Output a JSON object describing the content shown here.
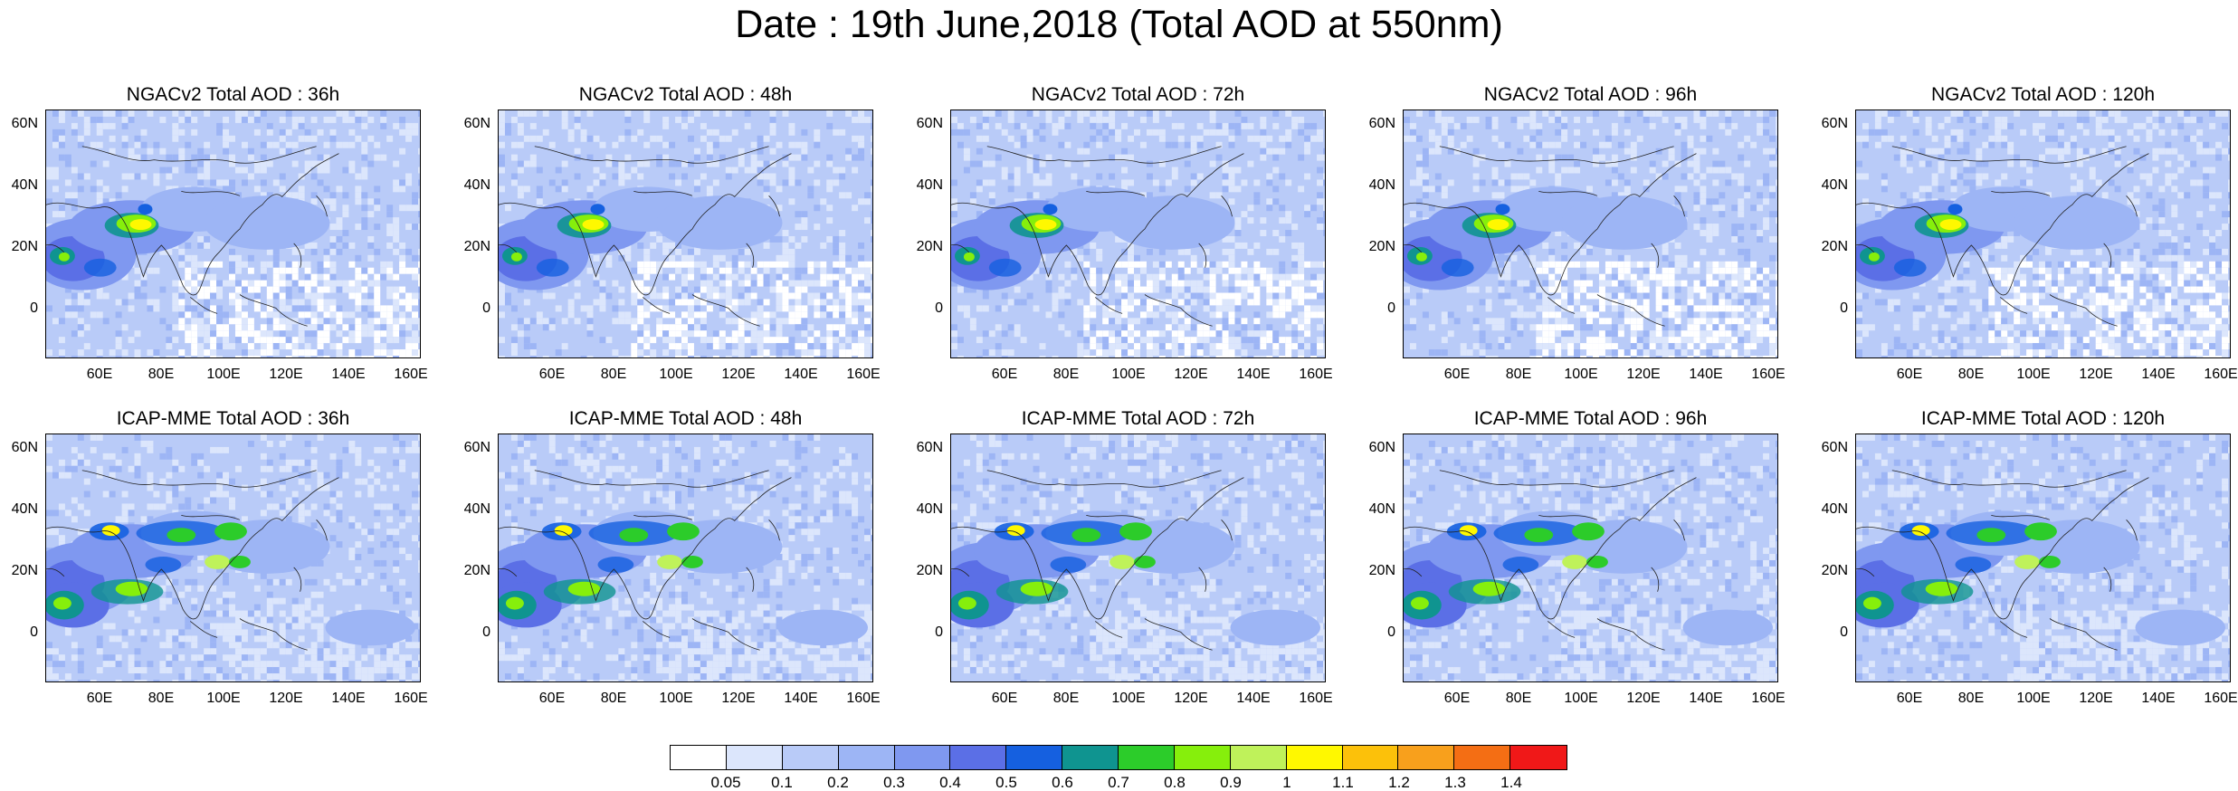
{
  "title": "Date : 19th June,2018 (Total AOD at 550nm)",
  "panels": [
    {
      "title": "NGACv2 Total AOD : 36h",
      "model": "NGACv2",
      "lead": "36h"
    },
    {
      "title": "NGACv2 Total AOD : 48h",
      "model": "NGACv2",
      "lead": "48h"
    },
    {
      "title": "NGACv2 Total AOD : 72h",
      "model": "NGACv2",
      "lead": "72h"
    },
    {
      "title": "NGACv2 Total AOD : 96h",
      "model": "NGACv2",
      "lead": "96h"
    },
    {
      "title": "NGACv2 Total AOD : 120h",
      "model": "NGACv2",
      "lead": "120h"
    },
    {
      "title": "ICAP-MME Total AOD : 36h",
      "model": "ICAP-MME",
      "lead": "36h"
    },
    {
      "title": "ICAP-MME Total AOD : 48h",
      "model": "ICAP-MME",
      "lead": "48h"
    },
    {
      "title": "ICAP-MME Total AOD : 72h",
      "model": "ICAP-MME",
      "lead": "72h"
    },
    {
      "title": "ICAP-MME Total AOD : 96h",
      "model": "ICAP-MME",
      "lead": "96h"
    },
    {
      "title": "ICAP-MME Total AOD : 120h",
      "model": "ICAP-MME",
      "lead": "120h"
    }
  ],
  "lat_ticks": [
    "60N",
    "40N",
    "20N",
    "0"
  ],
  "lon_ticks": [
    "60E",
    "80E",
    "100E",
    "120E",
    "140E",
    "160E"
  ],
  "colorbar": {
    "labels": [
      "0.05",
      "0.1",
      "0.2",
      "0.3",
      "0.4",
      "0.5",
      "0.6",
      "0.7",
      "0.8",
      "0.9",
      "1",
      "1.1",
      "1.2",
      "1.3",
      "1.4"
    ],
    "colors": [
      "#ffffff",
      "#dce6fc",
      "#b9cbf8",
      "#9db5f5",
      "#7f98f0",
      "#5b6fe6",
      "#1560e0",
      "#0f9490",
      "#2ccc2a",
      "#86ef0c",
      "#bff25a",
      "#fff800",
      "#fcc10a",
      "#f8a01c",
      "#f46e14",
      "#f01818"
    ]
  }
}
